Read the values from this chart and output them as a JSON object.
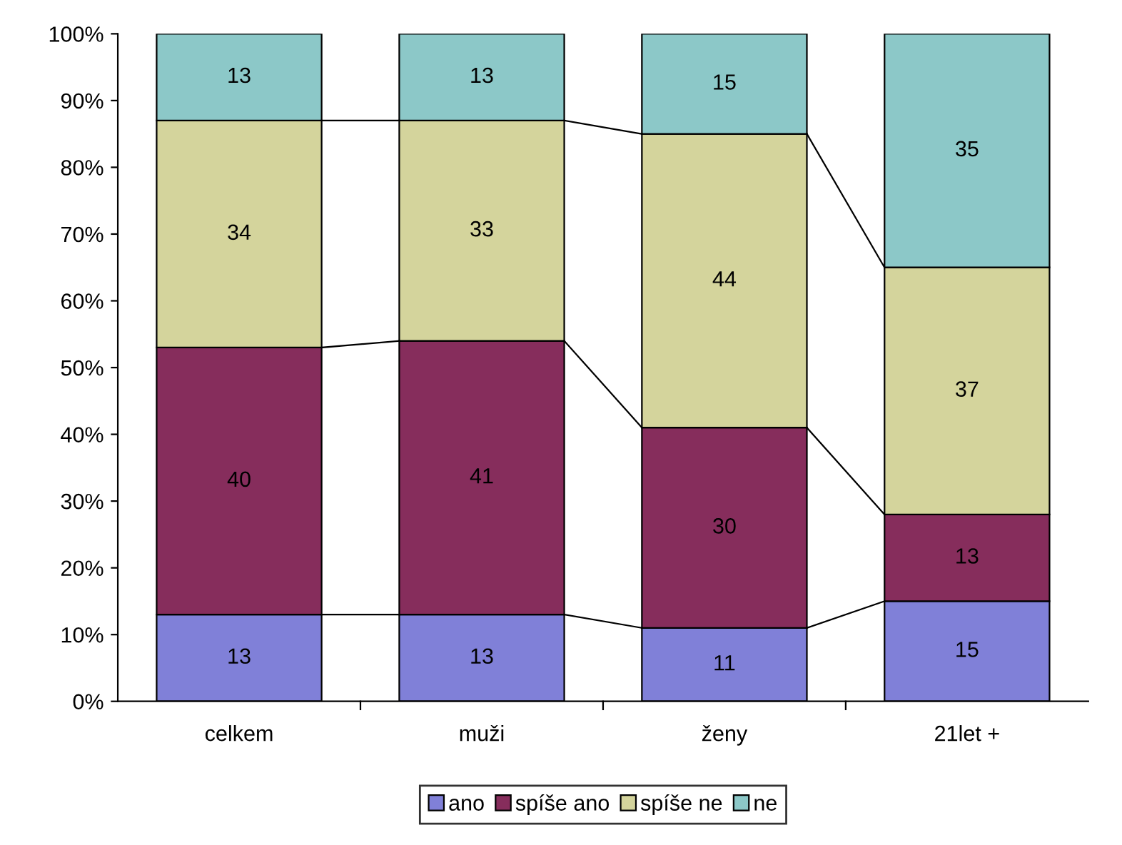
{
  "chart_data": {
    "type": "bar",
    "stacked": true,
    "categories": [
      "celkem",
      "muži",
      "ženy",
      "21let +"
    ],
    "series": [
      {
        "name": "ano",
        "color": "#8080d8",
        "values": [
          13,
          13,
          11,
          15
        ]
      },
      {
        "name": "spíše ano",
        "color": "#862d5c",
        "values": [
          40,
          41,
          30,
          13
        ]
      },
      {
        "name": "spíše ne",
        "color": "#d4d49c",
        "values": [
          34,
          33,
          44,
          37
        ]
      },
      {
        "name": "ne",
        "color": "#8cc8c8",
        "values": [
          13,
          13,
          15,
          35
        ]
      }
    ],
    "ylim": [
      0,
      100
    ],
    "yticks": [
      {
        "value": 0,
        "label": "0%"
      },
      {
        "value": 10,
        "label": "10%"
      },
      {
        "value": 20,
        "label": "20%"
      },
      {
        "value": 30,
        "label": "30%"
      },
      {
        "value": 40,
        "label": "40%"
      },
      {
        "value": 50,
        "label": "50%"
      },
      {
        "value": 60,
        "label": "60%"
      },
      {
        "value": 70,
        "label": "70%"
      },
      {
        "value": 80,
        "label": "80%"
      },
      {
        "value": 90,
        "label": "90%"
      },
      {
        "value": 100,
        "label": "100%"
      }
    ],
    "data_labels": true,
    "legend": "bottom",
    "grid": false
  }
}
